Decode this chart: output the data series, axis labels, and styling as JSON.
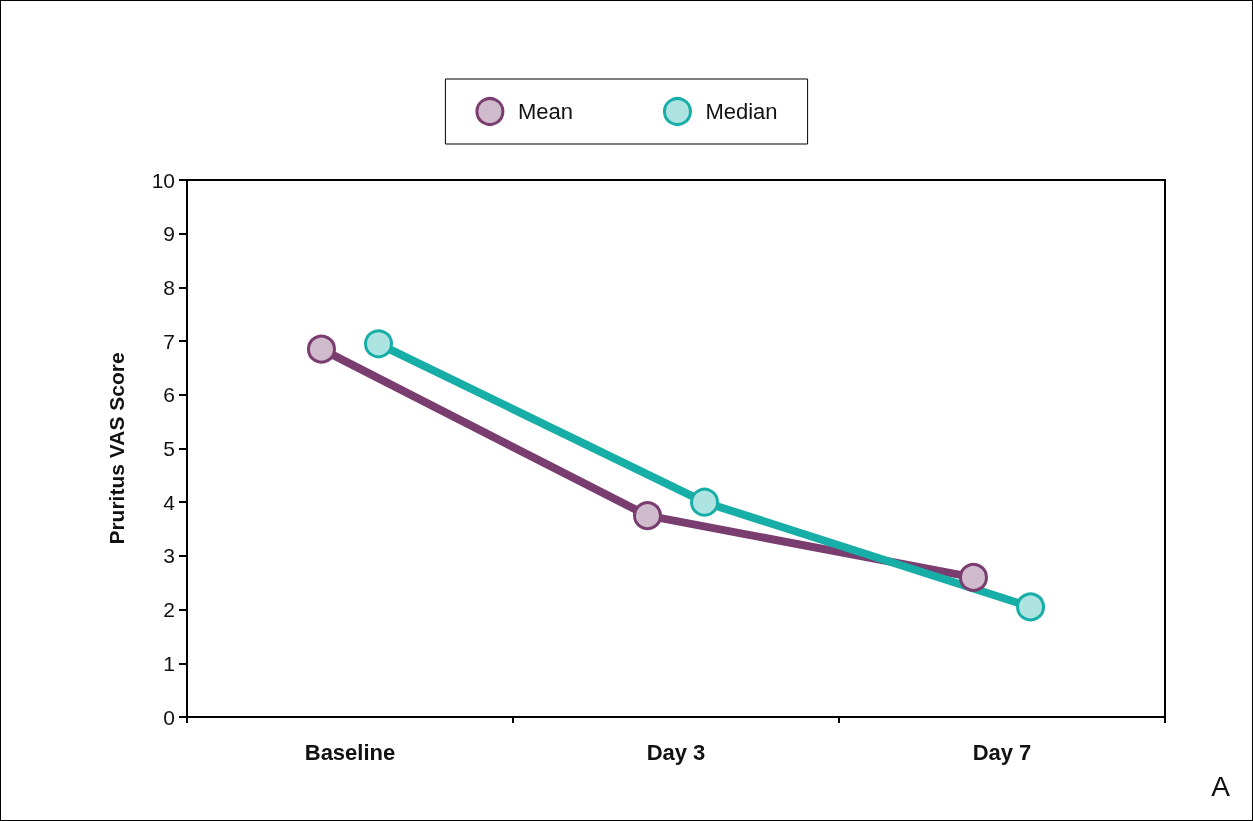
{
  "chart_data": {
    "type": "line",
    "ylabel": "Pruritus VAS Score",
    "categories": [
      "Baseline",
      "Day 3",
      "Day 7"
    ],
    "series": [
      {
        "name": "Mean",
        "color": "#7a3d70",
        "values": [
          6.85,
          3.75,
          2.6
        ]
      },
      {
        "name": "Median",
        "color": "#16aea6",
        "values": [
          6.95,
          4.0,
          2.05
        ]
      }
    ],
    "ylim": [
      0,
      10
    ],
    "yticks": [
      0,
      1,
      2,
      3,
      4,
      5,
      6,
      7,
      8,
      9,
      10
    ],
    "grid": false,
    "legend": "top",
    "marker": "circle",
    "line_style": "solid",
    "annotations": [
      "A"
    ]
  }
}
